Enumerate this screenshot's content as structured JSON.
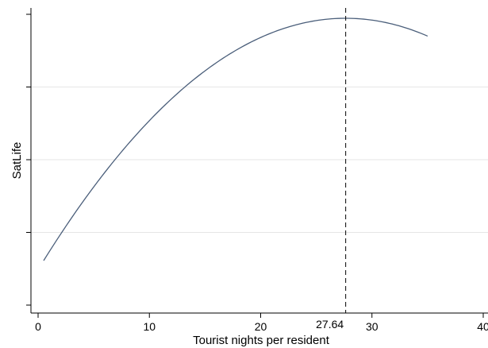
{
  "chart_data": {
    "type": "line",
    "xlabel": "Tourist nights per resident",
    "ylabel": "SatLife",
    "xlim": [
      0,
      40
    ],
    "x_ticks": [
      "0",
      "10",
      "20",
      "30",
      "40"
    ],
    "y_tick_count": 5,
    "grid": true,
    "reference_line": {
      "x": 27.64,
      "label": "27.64",
      "style": "dashed"
    },
    "curve": {
      "shape": "quadratic",
      "x_range": [
        0.5,
        35
      ],
      "x_peak": 27.64
    }
  },
  "colors": {
    "line": "#4a5e7a",
    "grid": "#e6e6e6",
    "background": "#ffffff"
  }
}
